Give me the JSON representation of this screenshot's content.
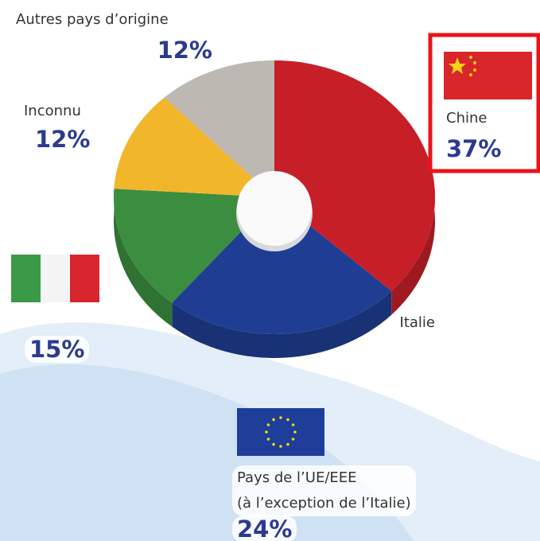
{
  "chart_data": {
    "type": "pie",
    "categories": [
      "Chine",
      "Pays de l’UE/EEE\n(à l’exception de l’Italie)",
      "Italie",
      "Inconnu",
      "Autres pays d’origine"
    ],
    "values": [
      37,
      24,
      15,
      12,
      12
    ],
    "value_labels": [
      "37%",
      "24%",
      "15%",
      "12%",
      "12%"
    ],
    "colors": [
      "#c71f28",
      "#1f3e93",
      "#3b8e3f",
      "#f2b62b",
      "#bdb8b2"
    ]
  }
}
